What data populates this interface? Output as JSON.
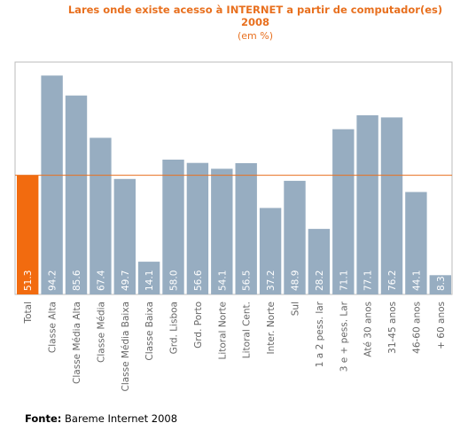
{
  "chart_data": {
    "type": "bar",
    "title": "Lares onde existe acesso à INTERNET a partir de computador(es)",
    "title_line2": "2008",
    "subtitle": "(em %)",
    "categories": [
      "Total",
      "Classe Alta",
      "Classe Média Alta",
      "Classe Média",
      "Classe Média Baixa",
      "Classe Baixa",
      "Grd. Lisboa",
      "Grd. Porto",
      "Litoral Norte",
      "Litoral Cent.",
      "Inter. Norte",
      "Sul",
      "1 a 2 pess. lar",
      "3 e + pess. Lar",
      "Até 30 anos",
      "31-45 anos",
      "46-60 anos",
      "+ 60 anos"
    ],
    "values": [
      51.3,
      94.2,
      85.6,
      67.4,
      49.7,
      14.1,
      58.0,
      56.6,
      54.1,
      56.5,
      37.2,
      48.9,
      28.2,
      71.1,
      77.1,
      76.2,
      44.1,
      8.3
    ],
    "value_labels": [
      "51.3",
      "94.2",
      "85.6",
      "67.4",
      "49.7",
      "14.1",
      "58.0",
      "56.6",
      "54.1",
      "56.5",
      "37.2",
      "48.9",
      "28.2",
      "71.1",
      "77.1",
      "76.2",
      "44.1",
      "8.3"
    ],
    "highlight_index": 0,
    "reference_line": 51.3,
    "ylim": [
      0,
      100
    ],
    "grid": false,
    "xlabel": "",
    "ylabel": "",
    "colors": {
      "bar": "#97adc1",
      "highlight_bar": "#f26b0f",
      "reference_line": "#e8701f",
      "title": "#e8701f",
      "frame": "#bbbbbb",
      "value_label": "#ffffff",
      "category_label": "#666666"
    }
  },
  "footer": {
    "label": "Fonte:",
    "text": " Bareme Internet 2008"
  }
}
